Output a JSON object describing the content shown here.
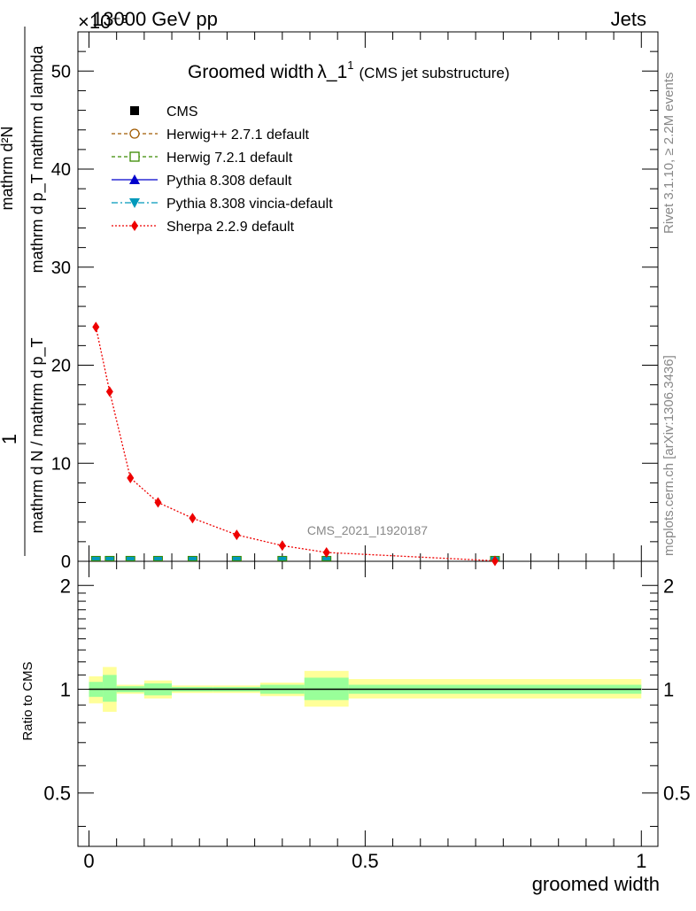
{
  "header": {
    "left": "13000 GeV pp",
    "right": "Jets",
    "exponent": "×10⁻³"
  },
  "side_labels": {
    "rivet": "Rivet 3.1.10, ≥ 2.2M events",
    "mcplots": "mcplots.cern.ch [arXiv:1306.3436]"
  },
  "watermark": "CMS_2021_I1920187",
  "ylabel_upper": {
    "numerator": "1",
    "denominator": "mathrm d N / mathrm d p_T",
    "rhs_num": "mathrm d²N",
    "rhs_den": "mathrm d p_T mathrm d lambda"
  },
  "colors": {
    "cms": "#000000",
    "herwigpp": "#a05a00",
    "herwig7": "#3a8a00",
    "pythia": "#0000cc",
    "vincia": "#0099bb",
    "sherpa": "#ee0000",
    "band_green": "#99ff99",
    "band_yellow": "#ffff99"
  },
  "chart_data": [
    {
      "type": "line",
      "title": "Groomed width λ_1¹ (CMS jet substructure)",
      "title_main": "Groomed width",
      "title_lambda": "λ_1",
      "title_sup": "1",
      "title_sub": "(CMS jet substructure)",
      "ylabel": "1/(mathrm d N / mathrm d p_T) mathrm d²N/(mathrm d p_T mathrm d lambda)",
      "xlim": [
        -0.02,
        1.03
      ],
      "ylim": [
        0,
        54
      ],
      "yticks": [
        0,
        10,
        20,
        30,
        40,
        50
      ],
      "legend": {
        "placement": "top-left",
        "entries": [
          {
            "key": "cms",
            "label": "CMS"
          },
          {
            "key": "herwigpp",
            "label": "Herwig++ 2.7.1 default"
          },
          {
            "key": "herwig7",
            "label": "Herwig 7.2.1 default"
          },
          {
            "key": "pythia",
            "label": "Pythia 8.308 default"
          },
          {
            "key": "vincia",
            "label": "Pythia 8.308 vincia-default"
          },
          {
            "key": "sherpa",
            "label": "Sherpa 2.2.9 default"
          }
        ]
      },
      "series": [
        {
          "key": "sherpa",
          "name": "Sherpa 2.2.9 default",
          "x": [
            0.0125,
            0.0375,
            0.075,
            0.125,
            0.1875,
            0.2675,
            0.35,
            0.43,
            0.735
          ],
          "y": [
            23.9,
            17.3,
            8.5,
            6.0,
            4.4,
            2.7,
            1.6,
            0.9,
            0.05
          ]
        },
        {
          "key": "others",
          "name": "CMS",
          "x": [
            0.0125,
            0.0375,
            0.075,
            0.125,
            0.1875,
            0.2675,
            0.35,
            0.43,
            0.735
          ],
          "y": [
            0.05,
            0.05,
            0.05,
            0.05,
            0.05,
            0.05,
            0.05,
            0.05,
            0.05
          ]
        }
      ]
    },
    {
      "type": "area",
      "ylabel": "Ratio to CMS",
      "xlabel": "groomed width",
      "xlim": [
        -0.02,
        1.03
      ],
      "ylim": [
        0.35,
        2.35
      ],
      "yscale": "log",
      "yticks": [
        0.5,
        1,
        2
      ],
      "xticks": [
        0,
        0.5,
        1
      ],
      "bins": [
        {
          "lo": 0.0,
          "hi": 0.025,
          "green": [
            0.95,
            1.05
          ],
          "yellow": [
            0.91,
            1.09
          ]
        },
        {
          "lo": 0.025,
          "hi": 0.05,
          "green": [
            0.92,
            1.1
          ],
          "yellow": [
            0.86,
            1.16
          ]
        },
        {
          "lo": 0.05,
          "hi": 0.1,
          "green": [
            0.98,
            1.02
          ],
          "yellow": [
            0.97,
            1.03
          ]
        },
        {
          "lo": 0.1,
          "hi": 0.15,
          "green": [
            0.96,
            1.04
          ],
          "yellow": [
            0.94,
            1.06
          ]
        },
        {
          "lo": 0.15,
          "hi": 0.225,
          "green": [
            0.985,
            1.015
          ],
          "yellow": [
            0.975,
            1.025
          ]
        },
        {
          "lo": 0.225,
          "hi": 0.31,
          "green": [
            0.985,
            1.015
          ],
          "yellow": [
            0.975,
            1.025
          ]
        },
        {
          "lo": 0.31,
          "hi": 0.39,
          "green": [
            0.97,
            1.03
          ],
          "yellow": [
            0.955,
            1.045
          ]
        },
        {
          "lo": 0.39,
          "hi": 0.47,
          "green": [
            0.93,
            1.08
          ],
          "yellow": [
            0.89,
            1.13
          ]
        },
        {
          "lo": 0.47,
          "hi": 1.0,
          "green": [
            0.97,
            1.03
          ],
          "yellow": [
            0.94,
            1.07
          ]
        }
      ],
      "reference_line": 1
    }
  ]
}
